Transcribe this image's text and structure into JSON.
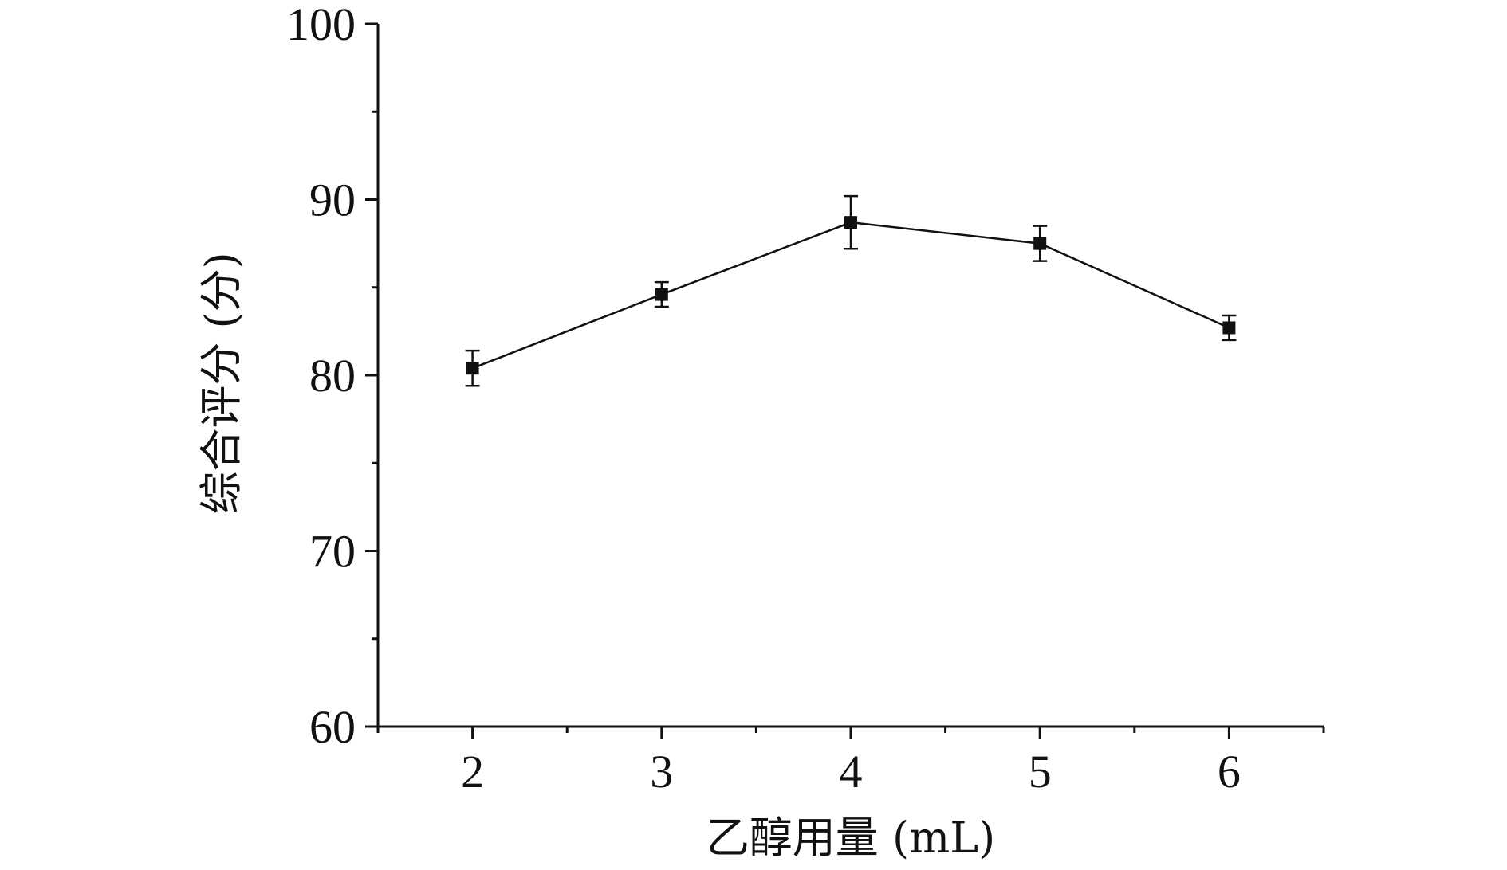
{
  "chart_data": {
    "type": "line",
    "xlabel": "乙醇用量 (mL)",
    "ylabel": "综合评分 (分)",
    "xlim": [
      1.5,
      6.5
    ],
    "ylim": [
      60,
      100
    ],
    "x_ticks": [
      2,
      3,
      4,
      5,
      6
    ],
    "y_ticks": [
      60,
      70,
      80,
      90,
      100
    ],
    "grid": false,
    "legend": "none",
    "series": [
      {
        "x": [
          2,
          3,
          4,
          5,
          6
        ],
        "values": [
          80.4,
          84.6,
          88.7,
          87.5,
          82.7
        ],
        "error": [
          1.0,
          0.7,
          1.5,
          1.0,
          0.7
        ]
      }
    ]
  }
}
